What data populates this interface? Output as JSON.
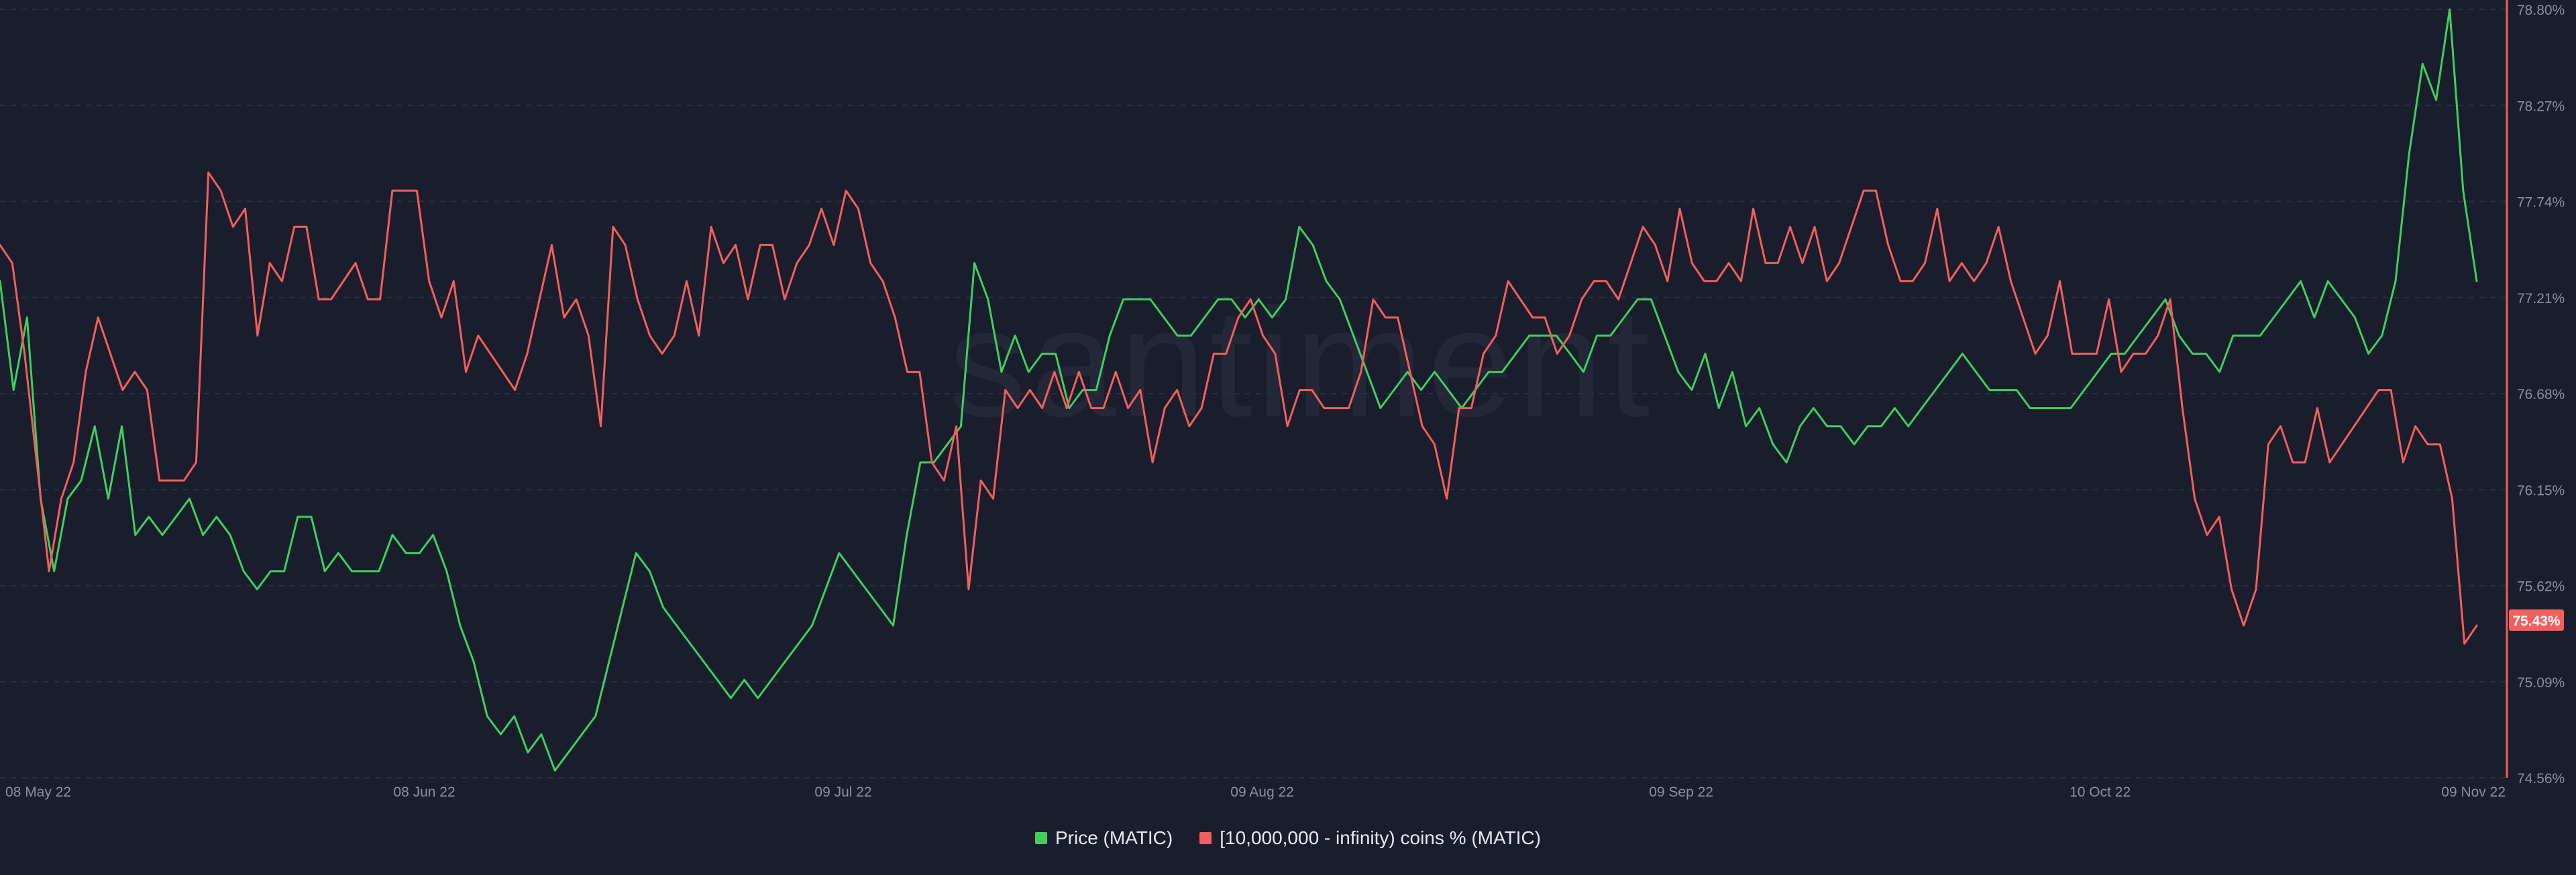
{
  "chart_data": {
    "type": "line",
    "title": "",
    "watermark": "santiment",
    "x_ticks": [
      "08 May 22",
      "08 Jun 22",
      "09 Jul 22",
      "09 Aug 22",
      "09 Sep 22",
      "10 Oct 22",
      "09 Nov 22"
    ],
    "x_range": [
      "2022-05-08",
      "2022-11-09"
    ],
    "y_right": {
      "label": "",
      "ticks": [
        "78.80%",
        "78.27%",
        "77.74%",
        "77.21%",
        "76.68%",
        "76.15%",
        "75.62%",
        "75.09%",
        "74.56%"
      ],
      "range": [
        74.56,
        78.8
      ],
      "current_value_label": "75.43%"
    },
    "grid": "horizontal dashed",
    "legend_position": "bottom-center",
    "series": [
      {
        "name": "Price (MATIC)",
        "color": "#3fcf5e",
        "axis": "hidden (no scale printed)",
        "values": [
          77.3,
          76.7,
          77.1,
          76.1,
          75.7,
          76.1,
          76.2,
          76.5,
          76.1,
          76.5,
          75.9,
          76.0,
          75.9,
          76.0,
          76.1,
          75.9,
          76.0,
          75.9,
          75.7,
          75.6,
          75.7,
          75.7,
          76.0,
          76.0,
          75.7,
          75.8,
          75.7,
          75.7,
          75.7,
          75.9,
          75.8,
          75.8,
          75.9,
          75.7,
          75.4,
          75.2,
          74.9,
          74.8,
          74.9,
          74.7,
          74.8,
          74.6,
          74.7,
          74.8,
          74.9,
          75.2,
          75.5,
          75.8,
          75.7,
          75.5,
          75.4,
          75.3,
          75.2,
          75.1,
          75.0,
          75.1,
          75.0,
          75.1,
          75.2,
          75.3,
          75.4,
          75.6,
          75.8,
          75.7,
          75.6,
          75.5,
          75.4,
          75.9,
          76.3,
          76.3,
          76.4,
          76.5,
          77.4,
          77.2,
          76.8,
          77.0,
          76.8,
          76.9,
          76.9,
          76.6,
          76.7,
          76.7,
          77.0,
          77.2,
          77.2,
          77.2,
          77.1,
          77.0,
          77.0,
          77.1,
          77.2,
          77.2,
          77.1,
          77.2,
          77.1,
          77.2,
          77.6,
          77.5,
          77.3,
          77.2,
          77.0,
          76.8,
          76.6,
          76.7,
          76.8,
          76.7,
          76.8,
          76.7,
          76.6,
          76.7,
          76.8,
          76.8,
          76.9,
          77.0,
          77.0,
          77.0,
          76.9,
          76.8,
          77.0,
          77.0,
          77.1,
          77.2,
          77.2,
          77.0,
          76.8,
          76.7,
          76.9,
          76.6,
          76.8,
          76.5,
          76.6,
          76.4,
          76.3,
          76.5,
          76.6,
          76.5,
          76.5,
          76.4,
          76.5,
          76.5,
          76.6,
          76.5,
          76.6,
          76.7,
          76.8,
          76.9,
          76.8,
          76.7,
          76.7,
          76.7,
          76.6,
          76.6,
          76.6,
          76.6,
          76.7,
          76.8,
          76.9,
          76.9,
          77.0,
          77.1,
          77.2,
          77.0,
          76.9,
          76.9,
          76.8,
          77.0,
          77.0,
          77.0,
          77.1,
          77.2,
          77.3,
          77.1,
          77.3,
          77.2,
          77.1,
          76.9,
          77.0,
          77.3,
          78.0,
          78.5,
          78.3,
          78.8,
          77.8,
          77.3
        ]
      },
      {
        "name": "[10,000,000 - infinity) coins % (MATIC)",
        "color": "#f0605d",
        "axis": "right",
        "values": [
          77.5,
          77.4,
          76.9,
          76.3,
          75.7,
          76.1,
          76.3,
          76.8,
          77.1,
          76.9,
          76.7,
          76.8,
          76.7,
          76.2,
          76.2,
          76.2,
          76.3,
          77.9,
          77.8,
          77.6,
          77.7,
          77.0,
          77.4,
          77.3,
          77.6,
          77.6,
          77.2,
          77.2,
          77.3,
          77.4,
          77.2,
          77.2,
          77.8,
          77.8,
          77.8,
          77.3,
          77.1,
          77.3,
          76.8,
          77.0,
          76.9,
          76.8,
          76.7,
          76.9,
          77.2,
          77.5,
          77.1,
          77.2,
          77.0,
          76.5,
          77.6,
          77.5,
          77.2,
          77.0,
          76.9,
          77.0,
          77.3,
          77.0,
          77.6,
          77.4,
          77.5,
          77.2,
          77.5,
          77.5,
          77.2,
          77.4,
          77.5,
          77.7,
          77.5,
          77.8,
          77.7,
          77.4,
          77.3,
          77.1,
          76.8,
          76.8,
          76.3,
          76.2,
          76.5,
          75.6,
          76.2,
          76.1,
          76.7,
          76.6,
          76.7,
          76.6,
          76.8,
          76.6,
          76.8,
          76.6,
          76.6,
          76.8,
          76.6,
          76.7,
          76.3,
          76.6,
          76.7,
          76.5,
          76.6,
          76.9,
          76.9,
          77.1,
          77.2,
          77.0,
          76.9,
          76.5,
          76.7,
          76.7,
          76.6,
          76.6,
          76.6,
          76.8,
          77.2,
          77.1,
          77.1,
          76.8,
          76.5,
          76.4,
          76.1,
          76.6,
          76.6,
          76.9,
          77.0,
          77.3,
          77.2,
          77.1,
          77.1,
          76.9,
          77.0,
          77.2,
          77.3,
          77.3,
          77.2,
          77.4,
          77.6,
          77.5,
          77.3,
          77.7,
          77.4,
          77.3,
          77.3,
          77.4,
          77.3,
          77.7,
          77.4,
          77.4,
          77.6,
          77.4,
          77.6,
          77.3,
          77.4,
          77.6,
          77.8,
          77.8,
          77.5,
          77.3,
          77.3,
          77.4,
          77.7,
          77.3,
          77.4,
          77.3,
          77.4,
          77.6,
          77.3,
          77.1,
          76.9,
          77.0,
          77.3,
          76.9,
          76.9,
          76.9,
          77.2,
          76.8,
          76.9,
          76.9,
          77.0,
          77.2,
          76.6,
          76.1,
          75.9,
          76.0,
          75.6,
          75.4,
          75.6,
          76.4,
          76.5,
          76.3,
          76.3,
          76.6,
          76.3,
          76.4,
          76.5,
          76.6,
          76.7,
          76.7,
          76.3,
          76.5,
          76.4,
          76.4,
          76.1,
          75.3,
          75.4
        ]
      }
    ]
  },
  "legend": {
    "items": [
      {
        "label": "Price (MATIC)",
        "color": "#3fcf5e"
      },
      {
        "label": "[10,000,000 - infinity) coins % (MATIC)",
        "color": "#f0605d"
      }
    ]
  },
  "colors": {
    "background": "#1a1d2c",
    "grid": "#2b2f40",
    "axis_text": "#8a8fa3",
    "price_line": "#3fcf5e",
    "coins_line": "#f0605d",
    "right_axis_line": "#f0605d",
    "badge_bg": "#f0605d",
    "watermark": "#232738"
  }
}
